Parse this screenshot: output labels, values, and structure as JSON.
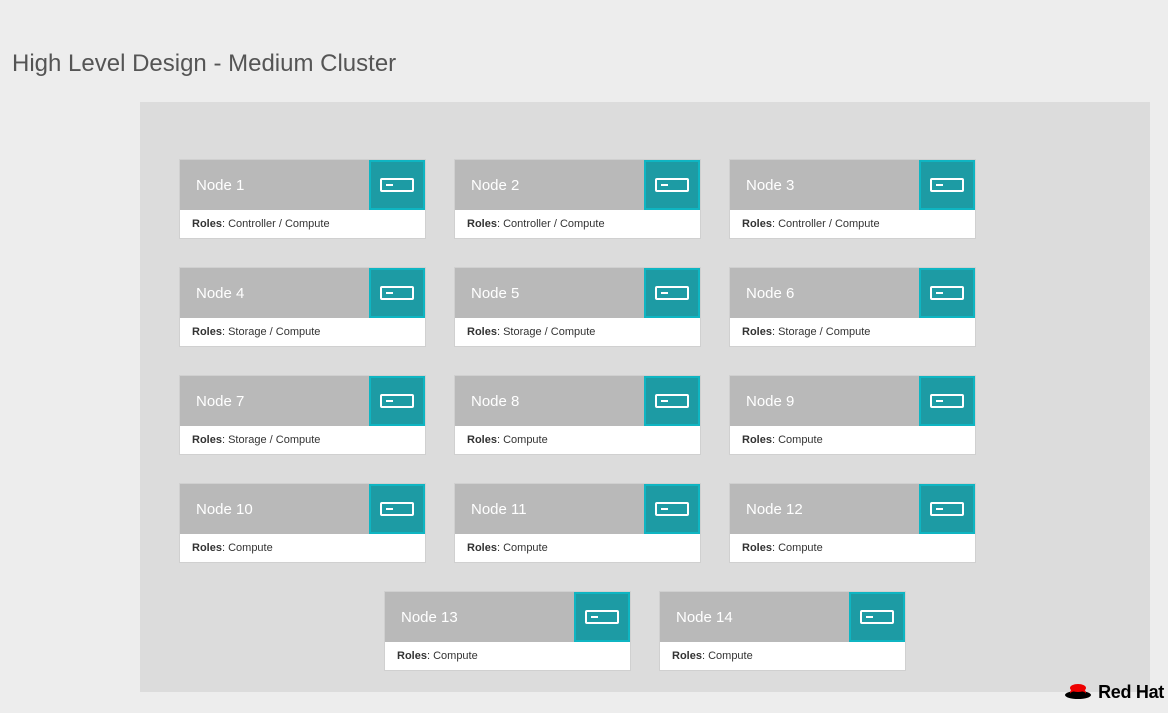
{
  "title": "High Level Design - Medium Cluster",
  "roles_label": "Roles",
  "colors": {
    "page_bg": "#ededed",
    "canvas_bg": "#dcdcdc",
    "node_header_bg": "#b9b9b9",
    "node_title_color": "#ffffff",
    "icon_box_fill": "#1d9ba4",
    "icon_box_border": "#0fb5c2",
    "icon_stroke": "#ffffff",
    "roles_bg": "#ffffff",
    "roles_text": "#333333",
    "title_text": "#555555",
    "logo_hat": "#ee0000",
    "logo_text": "#000000"
  },
  "layout": {
    "rows": [
      [
        0,
        1,
        2
      ],
      [
        3,
        4,
        5
      ],
      [
        6,
        7,
        8
      ],
      [
        9,
        10,
        11
      ],
      [
        12,
        13
      ]
    ],
    "last_row_centered": true
  },
  "nodes": [
    {
      "name": "Node 1",
      "roles": "Controller / Compute"
    },
    {
      "name": "Node 2",
      "roles": "Controller / Compute"
    },
    {
      "name": "Node 3",
      "roles": "Controller / Compute"
    },
    {
      "name": "Node 4",
      "roles": "Storage / Compute"
    },
    {
      "name": "Node 5",
      "roles": "Storage / Compute"
    },
    {
      "name": "Node 6",
      "roles": "Storage / Compute"
    },
    {
      "name": "Node 7",
      "roles": "Storage / Compute"
    },
    {
      "name": "Node 8",
      "roles": "Compute"
    },
    {
      "name": "Node 9",
      "roles": "Compute"
    },
    {
      "name": "Node 10",
      "roles": "Compute"
    },
    {
      "name": "Node 11",
      "roles": "Compute"
    },
    {
      "name": "Node 12",
      "roles": "Compute"
    },
    {
      "name": "Node 13",
      "roles": "Compute"
    },
    {
      "name": "Node 14",
      "roles": "Compute"
    }
  ],
  "footer": {
    "brand": "Red Hat"
  }
}
